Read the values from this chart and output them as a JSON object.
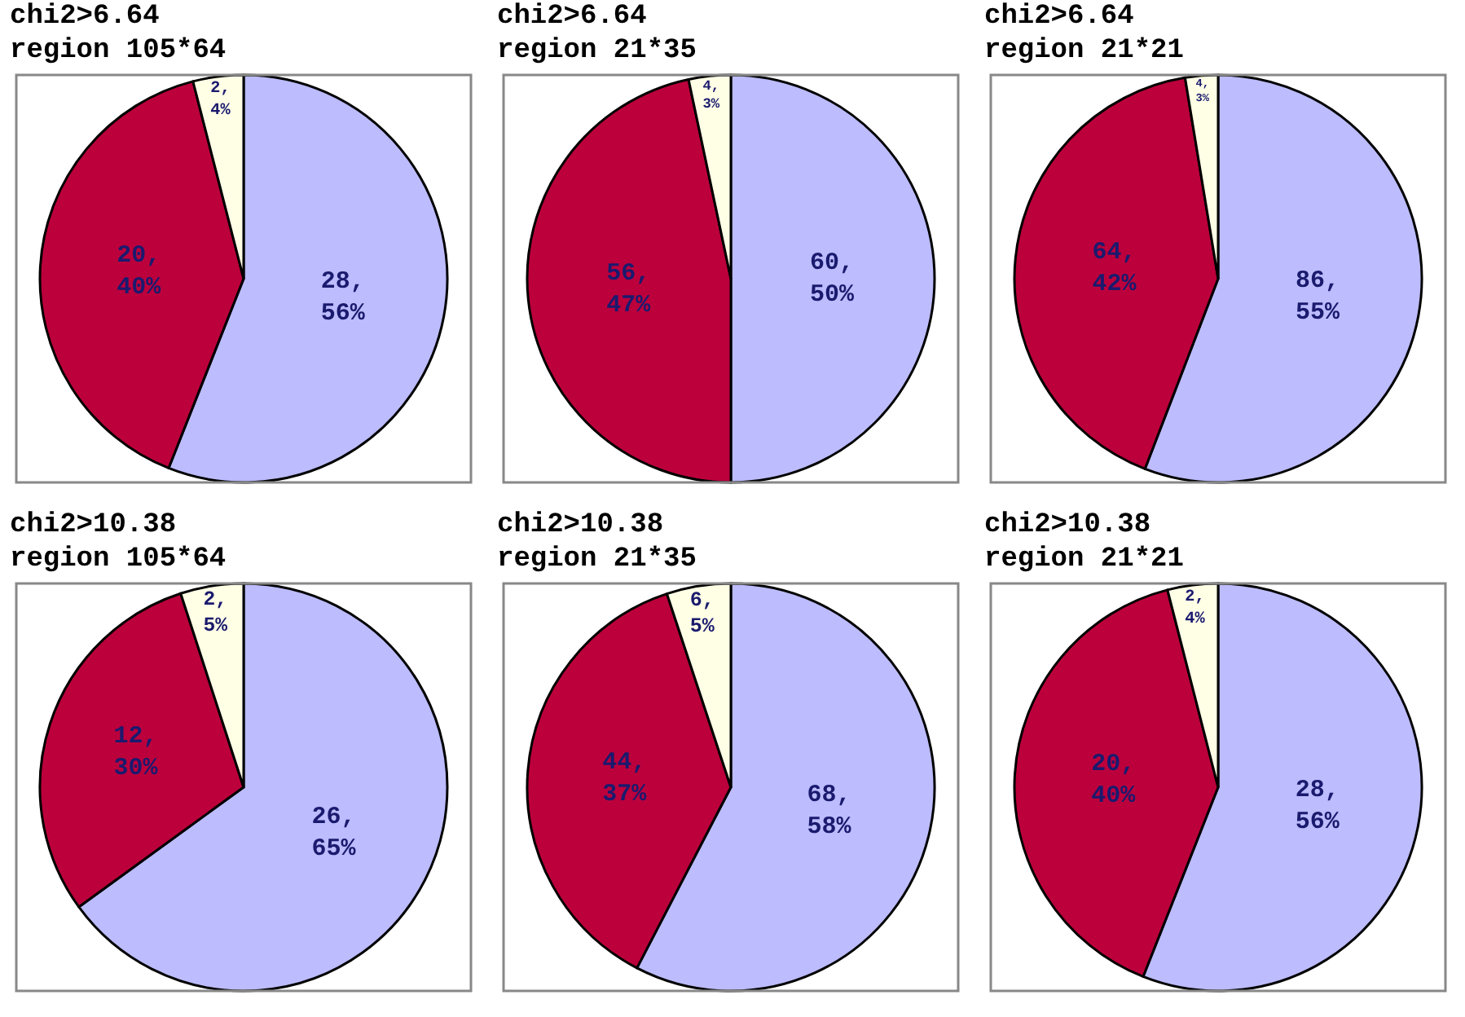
{
  "chart_data": [
    {
      "type": "pie",
      "title": "chi2>6.64",
      "subtitle": "region 105*64",
      "categories": [
        null,
        null,
        null
      ],
      "values": [
        28,
        20,
        2
      ],
      "colors": [
        "#bcbcff",
        "#bc003c",
        "#ffffe6"
      ],
      "value_labels": [
        "28,\n56%",
        "20,\n40%",
        "2,\n4%"
      ]
    },
    {
      "type": "pie",
      "title": "chi2>6.64",
      "subtitle": "region 21*35",
      "categories": [
        null,
        null,
        null
      ],
      "values": [
        60,
        56,
        4
      ],
      "colors": [
        "#bcbcff",
        "#bc003c",
        "#ffffe6"
      ],
      "value_labels": [
        "60,\n50%",
        "56,\n47%",
        "4,\n3%"
      ]
    },
    {
      "type": "pie",
      "title": "chi2>6.64",
      "subtitle": "region 21*21",
      "categories": [
        null,
        null,
        null
      ],
      "values": [
        86,
        64,
        4
      ],
      "colors": [
        "#bcbcff",
        "#bc003c",
        "#ffffe6"
      ],
      "value_labels": [
        "86,\n55%",
        "64,\n42%",
        "4,\n3%"
      ]
    },
    {
      "type": "pie",
      "title": "chi2>10.38",
      "subtitle": "region 105*64",
      "categories": [
        null,
        null,
        null
      ],
      "values": [
        26,
        12,
        2
      ],
      "colors": [
        "#bcbcff",
        "#bc003c",
        "#ffffe6"
      ],
      "value_labels": [
        "26,\n65%",
        "12,\n30%",
        "2,\n5%"
      ]
    },
    {
      "type": "pie",
      "title": "chi2>10.38",
      "subtitle": "region 21*35",
      "categories": [
        null,
        null,
        null
      ],
      "values": [
        68,
        44,
        6
      ],
      "colors": [
        "#bcbcff",
        "#bc003c",
        "#ffffe6"
      ],
      "value_labels": [
        "68,\n58%",
        "44,\n37%",
        "6,\n5%"
      ]
    },
    {
      "type": "pie",
      "title": "chi2>10.38",
      "subtitle": "region 21*21",
      "categories": [
        null,
        null,
        null
      ],
      "values": [
        28,
        20,
        2
      ],
      "colors": [
        "#bcbcff",
        "#bc003c",
        "#ffffe6"
      ],
      "value_labels": [
        "28,\n56%",
        "20,\n40%",
        "2,\n4%"
      ]
    }
  ]
}
